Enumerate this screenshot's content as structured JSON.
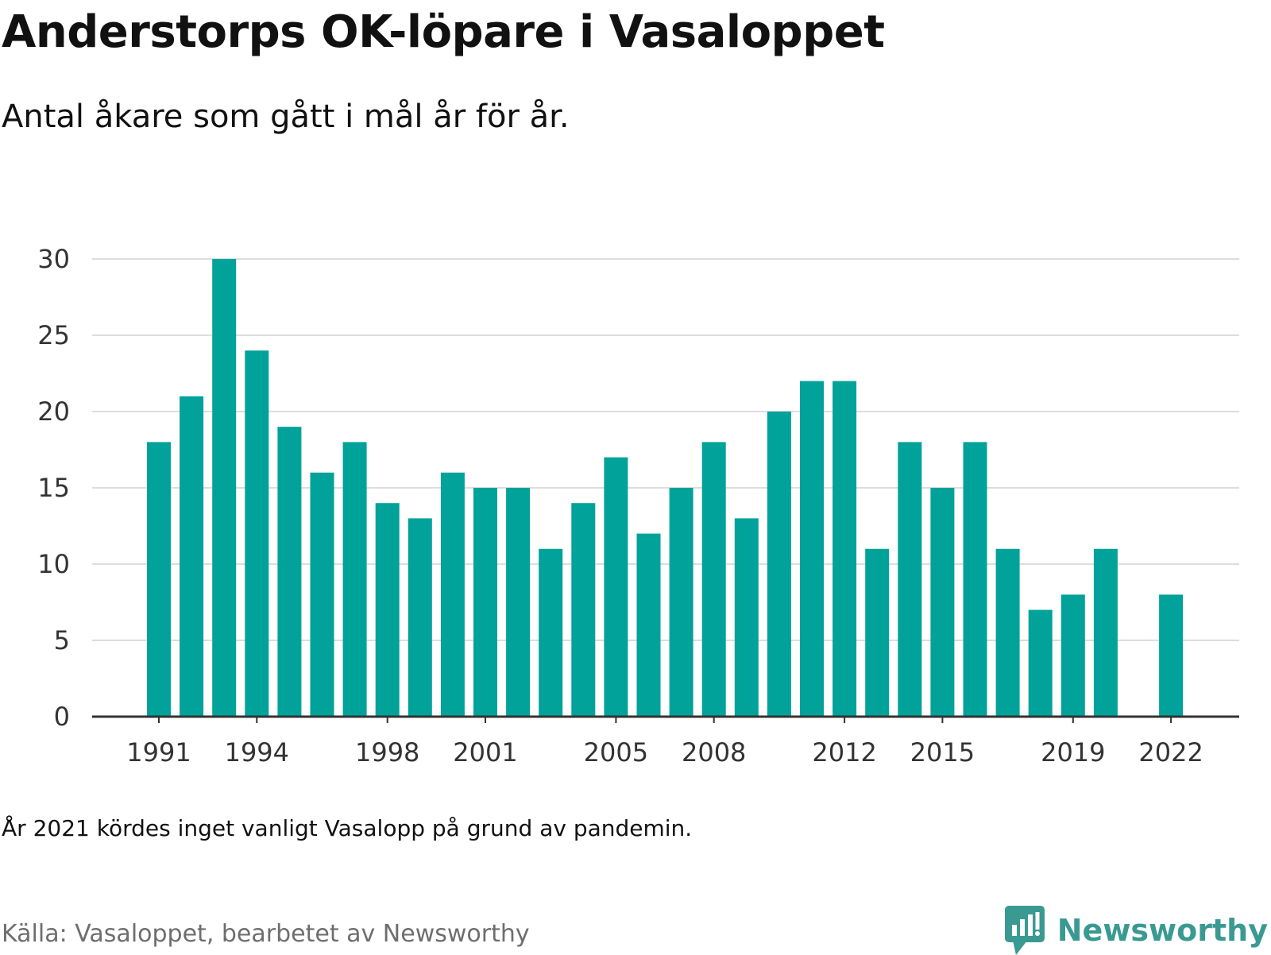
{
  "header": {
    "title": "Anderstorps OK-löpare i Vasaloppet",
    "subtitle": "Antal åkare som gått i mål år för år."
  },
  "footer": {
    "note": "År 2021 kördes inget vanligt Vasalopp på grund av pandemin.",
    "source": "Källa: Vasaloppet, bearbetet av Newsworthy",
    "brand": "Newsworthy",
    "brand_icon": "newsworthy-logo-icon"
  },
  "colors": {
    "bar": "#00a29a",
    "grid": "#dddddd",
    "axis": "#333333",
    "tick_text": "#333333",
    "brand": "#3a9a92"
  },
  "chart_data": {
    "type": "bar",
    "categories": [
      "1991",
      "1992",
      "1993",
      "1994",
      "1995",
      "1996",
      "1997",
      "1998",
      "1999",
      "2000",
      "2001",
      "2002",
      "2003",
      "2004",
      "2005",
      "2006",
      "2007",
      "2008",
      "2009",
      "2010",
      "2011",
      "2012",
      "2013",
      "2014",
      "2015",
      "2016",
      "2017",
      "2018",
      "2019",
      "2020",
      "2021",
      "2022"
    ],
    "values": [
      18,
      21,
      30,
      24,
      19,
      16,
      18,
      14,
      13,
      16,
      15,
      15,
      11,
      14,
      17,
      12,
      15,
      18,
      13,
      20,
      22,
      22,
      11,
      18,
      15,
      18,
      11,
      7,
      8,
      11,
      null,
      8
    ],
    "x_tick_labels": [
      "1991",
      "1994",
      "1998",
      "2001",
      "2005",
      "2008",
      "2012",
      "2015",
      "2019",
      "2022"
    ],
    "y_ticks": [
      0,
      5,
      10,
      15,
      20,
      25,
      30
    ],
    "ylim": [
      0,
      30
    ],
    "grid": true,
    "legend": "none"
  }
}
